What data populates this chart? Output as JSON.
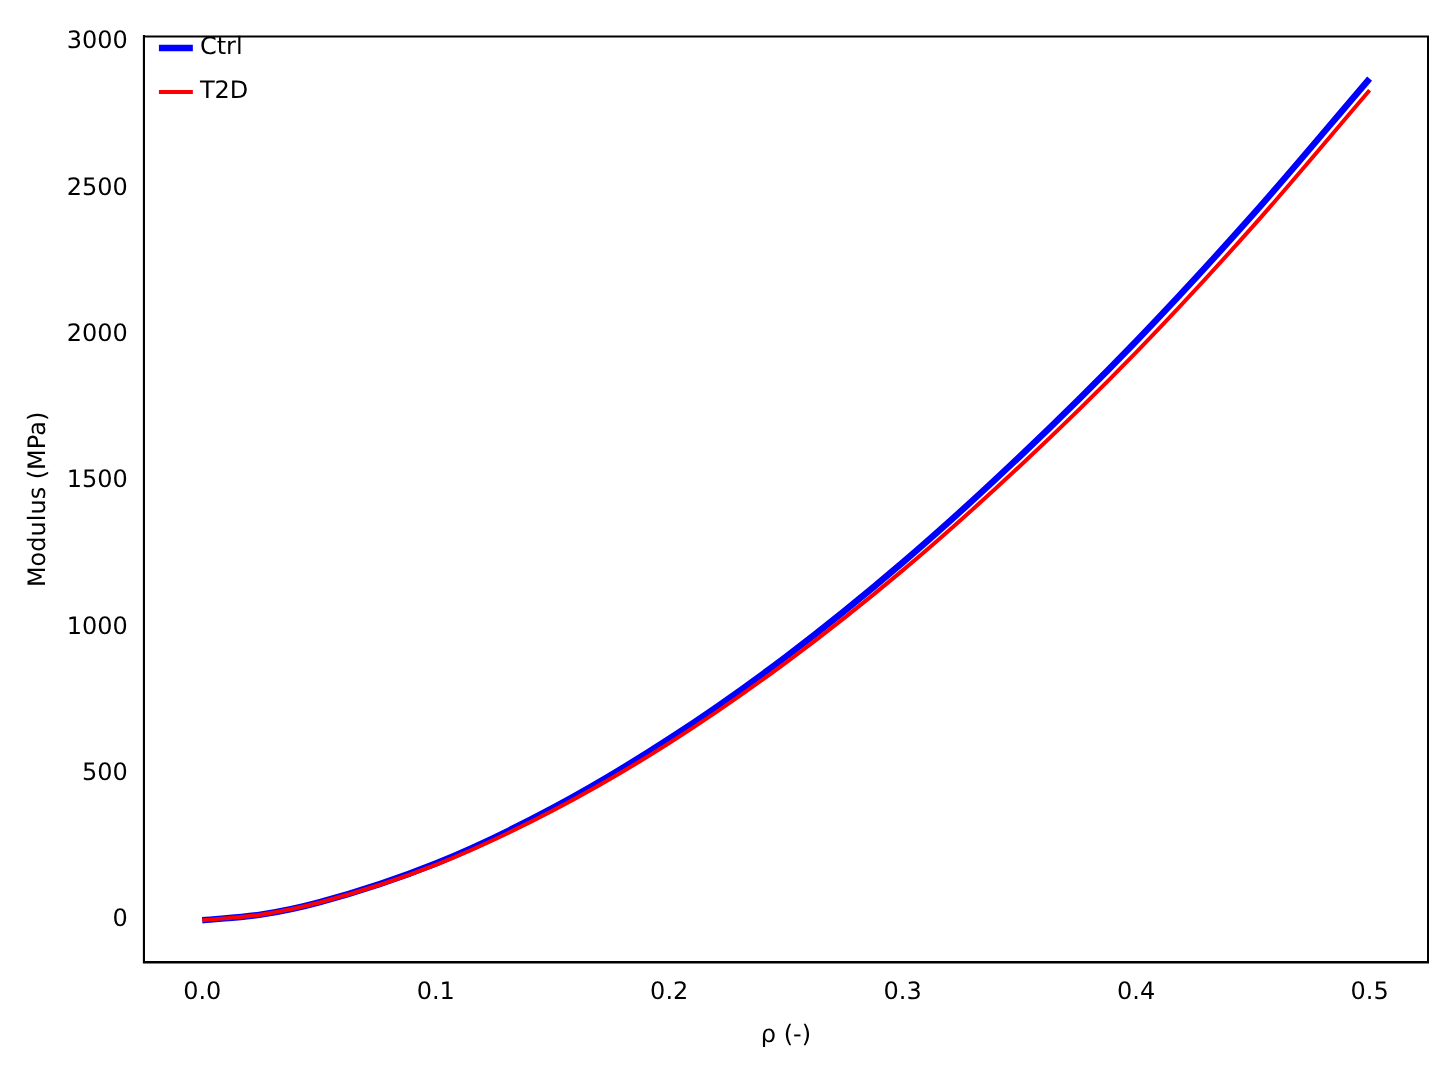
{
  "chart_data": {
    "type": "line",
    "xlabel": "ρ (-)",
    "ylabel": "Modulus (MPa)",
    "x": [
      0,
      0.025,
      0.05,
      0.1,
      0.15,
      0.2,
      0.25,
      0.3,
      0.35,
      0.4,
      0.45,
      0.5
    ],
    "series": [
      {
        "name": "Ctrl",
        "color": "#0000ff",
        "values": [
          0,
          19,
          61,
          194,
          383,
          620,
          900,
          1222,
          1583,
          1978,
          2410,
          2875
        ]
      },
      {
        "name": "T2D",
        "color": "#ff0000",
        "values": [
          0,
          19,
          60,
          189,
          374,
          605,
          880,
          1195,
          1550,
          1940,
          2370,
          2835
        ]
      }
    ],
    "xlim": [
      -0.025,
      0.525
    ],
    "ylim": [
      -144,
      3019
    ],
    "xticks": [
      {
        "value": 0,
        "label": "0.0"
      },
      {
        "value": 0.1,
        "label": "0.1"
      },
      {
        "value": 0.2,
        "label": "0.2"
      },
      {
        "value": 0.3,
        "label": "0.3"
      },
      {
        "value": 0.4,
        "label": "0.4"
      },
      {
        "value": 0.5,
        "label": "0.5"
      }
    ],
    "yticks": [
      0,
      500,
      1000,
      1500,
      2000,
      2500,
      3000
    ],
    "legend": "top left",
    "grid": false,
    "marker": "none",
    "line_style": "solid"
  }
}
